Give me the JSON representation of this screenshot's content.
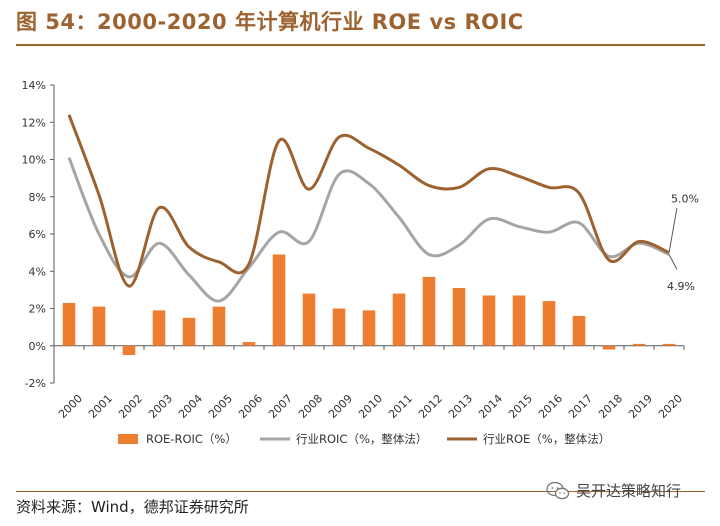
{
  "header": {
    "title": "图 54：2000-2020 年计算机行业 ROE vs ROIC"
  },
  "footer": {
    "source": "资料来源：Wind，德邦证券研究所"
  },
  "watermark": {
    "text": "吴开达策略知行",
    "icon": "wechat-icon"
  },
  "chart_data": {
    "type": "bar+line",
    "categories": [
      "2000",
      "2001",
      "2002",
      "2003",
      "2004",
      "2005",
      "2006",
      "2007",
      "2008",
      "2009",
      "2010",
      "2011",
      "2012",
      "2013",
      "2014",
      "2015",
      "2016",
      "2017",
      "2018",
      "2019",
      "2020"
    ],
    "ylim": [
      -2,
      14
    ],
    "yticks": [
      -2,
      0,
      2,
      4,
      6,
      8,
      10,
      12,
      14
    ],
    "ytick_labels": [
      "-2%",
      "0%",
      "2%",
      "4%",
      "6%",
      "8%",
      "10%",
      "12%",
      "14%"
    ],
    "series": [
      {
        "name": "ROE-ROIC（%）",
        "type": "bar",
        "color": "#ed7d31",
        "values": [
          2.3,
          2.1,
          -0.5,
          1.9,
          1.5,
          2.1,
          0.2,
          4.9,
          2.8,
          2.0,
          1.9,
          2.8,
          3.7,
          3.1,
          2.7,
          2.7,
          2.4,
          1.6,
          -0.2,
          0.1,
          0.1
        ]
      },
      {
        "name": "行业ROIC（%，整体法）",
        "type": "line",
        "color": "#a5a5a5",
        "values": [
          10.1,
          6.0,
          3.7,
          5.5,
          3.8,
          2.4,
          4.2,
          6.1,
          5.6,
          9.2,
          8.7,
          6.9,
          4.9,
          5.4,
          6.8,
          6.4,
          6.1,
          6.6,
          4.8,
          5.5,
          4.9
        ]
      },
      {
        "name": "行业ROE（%，整体法）",
        "type": "line",
        "color": "#9c6330",
        "values": [
          12.4,
          8.1,
          3.2,
          7.4,
          5.3,
          4.5,
          4.4,
          11.0,
          8.4,
          11.2,
          10.6,
          9.7,
          8.6,
          8.5,
          9.5,
          9.1,
          8.5,
          8.2,
          4.6,
          5.6,
          5.0
        ]
      }
    ],
    "annotations": [
      {
        "text": "5.0%",
        "series": 2,
        "index": 20
      },
      {
        "text": "4.9%",
        "series": 1,
        "index": 20
      }
    ],
    "legend": "bottom",
    "grid": false
  }
}
